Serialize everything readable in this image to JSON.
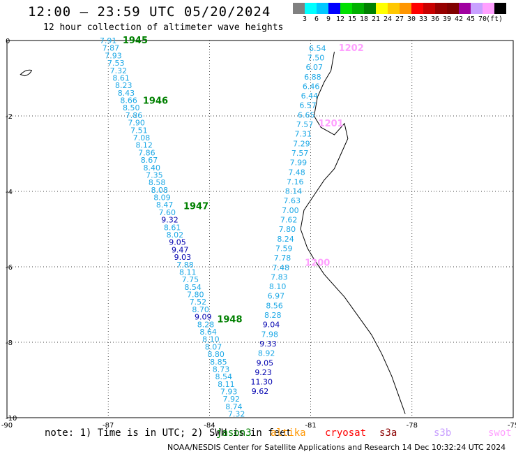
{
  "title": "12:00 – 23:59 UTC 05/20/2024",
  "subtitle": "12 hour collection of altimeter wave heights",
  "legend": {
    "colors": [
      "#808080",
      "#00ffff",
      "#00c8ff",
      "#0000ff",
      "#00e000",
      "#00b000",
      "#008000",
      "#ffff00",
      "#ffc800",
      "#ff9600",
      "#ff0000",
      "#c80000",
      "#960000",
      "#800000",
      "#a000a0",
      "#c8a0ff",
      "#ffa0ff",
      "#000000"
    ],
    "labels": [
      "3",
      "6",
      "9",
      "12",
      "15",
      "18",
      "21",
      "24",
      "27",
      "30",
      "33",
      "36",
      "39",
      "42",
      "45",
      "70",
      "(ft)"
    ]
  },
  "note": {
    "text": "note: 1) Time is in UTC; 2) SWH is in feet",
    "satellites": [
      {
        "name": "jason3",
        "color": "#008000"
      },
      {
        "name": "altika",
        "color": "#ff9600"
      },
      {
        "name": "cryosat",
        "color": "#ff0000"
      },
      {
        "name": "s3a",
        "color": "#8b0000"
      },
      {
        "name": "s3b",
        "color": "#c8a0ff"
      },
      {
        "name": "swot",
        "color": "#ffa0ff"
      }
    ]
  },
  "credit": "NOAA/NESDIS Center for Satellite Applications and Research   14 Dec 10:32:24 UTC 2024",
  "chart_data": {
    "type": "map-track",
    "xlim": [
      -90,
      -75
    ],
    "ylim": [
      -10,
      0
    ],
    "x_ticks": [
      -90,
      -87,
      -84,
      -81,
      -78,
      -75
    ],
    "y_ticks": [
      0,
      -2,
      -4,
      -6,
      -8,
      -10
    ],
    "grid": true,
    "tracks": [
      {
        "satellite": "jason3",
        "start": [
          -87.0,
          0.0
        ],
        "end": [
          -83.2,
          -9.9
        ],
        "time_labels": [
          {
            "text": "1945",
            "lon": -86.2,
            "lat": 0.0
          },
          {
            "text": "1946",
            "lon": -85.6,
            "lat": -1.6
          },
          {
            "text": "1947",
            "lon": -84.4,
            "lat": -4.4
          },
          {
            "text": "1948",
            "lon": -83.4,
            "lat": -7.4
          }
        ],
        "values": [
          7.91,
          7.87,
          7.93,
          7.53,
          7.32,
          8.61,
          8.23,
          8.43,
          8.66,
          8.5,
          7.86,
          7.9,
          7.51,
          7.08,
          8.12,
          7.86,
          8.67,
          8.4,
          7.35,
          8.58,
          8.08,
          8.09,
          8.47,
          7.6,
          9.32,
          8.61,
          8.02,
          9.05,
          9.47,
          9.03,
          7.88,
          8.11,
          7.75,
          8.54,
          7.8,
          7.52,
          8.7,
          9.09,
          8.28,
          8.64,
          8.1,
          8.07,
          8.8,
          8.85,
          8.73,
          8.54,
          8.11,
          7.93,
          7.92,
          8.74,
          7.32
        ]
      },
      {
        "satellite": "swot",
        "start": [
          -80.8,
          -0.2
        ],
        "end": [
          -82.5,
          -9.3
        ],
        "time_labels": [
          {
            "text": "1202",
            "lon": -79.8,
            "lat": -0.2
          },
          {
            "text": "1201",
            "lon": -80.4,
            "lat": -2.2
          },
          {
            "text": "1200",
            "lon": -80.8,
            "lat": -5.9
          }
        ],
        "values": [
          6.54,
          7.5,
          6.07,
          6.88,
          6.46,
          6.44,
          6.57,
          6.65,
          7.57,
          7.31,
          7.29,
          7.57,
          7.99,
          7.48,
          7.16,
          8.14,
          7.63,
          7.0,
          7.62,
          7.8,
          8.24,
          7.59,
          7.78,
          7.48,
          7.83,
          8.1,
          6.97,
          8.56,
          8.28,
          9.04,
          7.98,
          9.33,
          8.92,
          9.05,
          9.23,
          11.3,
          9.62
        ]
      }
    ]
  }
}
